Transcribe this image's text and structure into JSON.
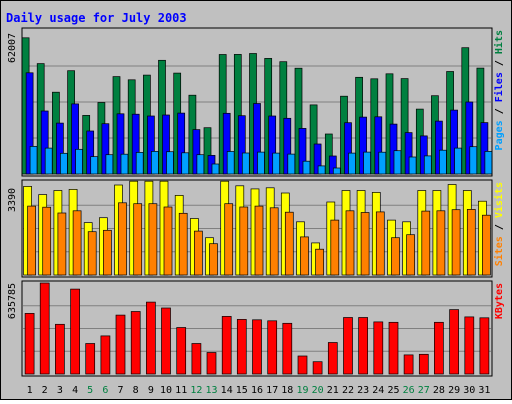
{
  "chart_data": {
    "type": "bar",
    "title": "Daily usage for July 2003",
    "days": [
      "1",
      "2",
      "3",
      "4",
      "5",
      "6",
      "7",
      "8",
      "9",
      "10",
      "11",
      "12",
      "13",
      "14",
      "15",
      "16",
      "17",
      "18",
      "19",
      "20",
      "21",
      "22",
      "23",
      "24",
      "25",
      "26",
      "27",
      "28",
      "29",
      "30",
      "31"
    ],
    "weekend_days": [
      "5",
      "6",
      "12",
      "13",
      "19",
      "20",
      "26",
      "27"
    ],
    "panels": [
      {
        "name": "hits-files-pages",
        "ymax_label": "62007",
        "ymax": 62007,
        "legend": [
          {
            "text": "Pages",
            "color": "#00a0ff"
          },
          {
            "text": " / ",
            "color": "#000000"
          },
          {
            "text": "Files",
            "color": "#0000ff"
          },
          {
            "text": " / ",
            "color": "#000000"
          },
          {
            "text": "Hits",
            "color": "#008040"
          }
        ],
        "series": [
          {
            "name": "Hits",
            "color": "#008040",
            "values": [
              58660,
              47520,
              35240,
              44480,
              25240,
              30800,
              41920,
              40560,
              42600,
              48960,
              43440,
              33920,
              19920,
              51440,
              51480,
              51880,
              49760,
              48360,
              45560,
              29760,
              17240,
              33480,
              41640,
              41000,
              43160,
              41080,
              27960,
              33720,
              44120,
              54400,
              45600
            ]
          },
          {
            "name": "Files",
            "color": "#0000ff",
            "values": [
              43560,
              27120,
              21930,
              30200,
              18520,
              21640,
              25930,
              25760,
              24960,
              25400,
              26210,
              19100,
              8000,
              26150,
              25100,
              30360,
              24960,
              23980,
              19640,
              12920,
              7740,
              22110,
              24520,
              24650,
              21500,
              17840,
              16400,
              22760,
              27520,
              31000,
              22120
            ]
          },
          {
            "name": "Pages",
            "color": "#00a0ff",
            "values": [
              11900,
              11140,
              8910,
              10630,
              7500,
              8330,
              8540,
              9290,
              9720,
              9600,
              9120,
              8330,
              4320,
              9690,
              9060,
              9450,
              9010,
              8560,
              5520,
              3500,
              2600,
              9020,
              9450,
              9400,
              10030,
              7300,
              7800,
              10230,
              11140,
              11740,
              9720
            ]
          }
        ]
      },
      {
        "name": "visits-sites",
        "ymax_label": "3390",
        "ymax": 3390,
        "legend": [
          {
            "text": "Sites",
            "color": "#ff8000"
          },
          {
            "text": " / ",
            "color": "#000000"
          },
          {
            "text": "Visits",
            "color": "#ffff00"
          }
        ],
        "series": [
          {
            "name": "Visits",
            "color": "#ffff00",
            "values": [
              3230,
              2930,
              3080,
              3120,
              1910,
              2090,
              3280,
              3420,
              3420,
              3420,
              2900,
              2060,
              1360,
              3420,
              3250,
              3140,
              3180,
              2990,
              1940,
              1170,
              2660,
              3080,
              3080,
              3010,
              2000,
              1940,
              3080,
              3080,
              3300,
              3080,
              2690
            ]
          },
          {
            "name": "Sites",
            "color": "#ff8000",
            "values": [
              2510,
              2470,
              2260,
              2340,
              1580,
              1630,
              2630,
              2600,
              2600,
              2480,
              2250,
              1600,
              1140,
              2600,
              2480,
              2510,
              2450,
              2290,
              1390,
              940,
              2000,
              2340,
              2280,
              2300,
              1360,
              1470,
              2330,
              2340,
              2380,
              2390,
              2180
            ]
          }
        ]
      },
      {
        "name": "kbytes",
        "ymax_label": "635785",
        "ymax": 635785,
        "legend": [
          {
            "text": "KBytes",
            "color": "#ff0000"
          }
        ],
        "series": [
          {
            "name": "KBytes",
            "color": "#ff0000",
            "values": [
              423700,
              635785,
              347200,
              593000,
              212900,
              266500,
              411600,
              436400,
              502200,
              460800,
              324700,
              212900,
              150000,
              402700,
              381400,
              378900,
              371700,
              354300,
              126100,
              86000,
              220000,
              394500,
              394800,
              364300,
              361300,
              133200,
              137900,
              361000,
              450000,
              399000,
              392800
            ]
          }
        ]
      }
    ]
  }
}
